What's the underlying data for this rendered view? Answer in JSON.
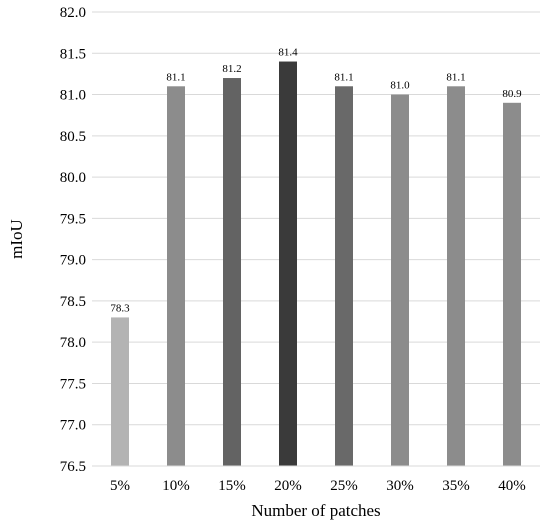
{
  "chart_data": {
    "type": "bar",
    "categories": [
      "5%",
      "10%",
      "15%",
      "20%",
      "25%",
      "30%",
      "35%",
      "40%"
    ],
    "values": [
      78.3,
      81.1,
      81.2,
      81.4,
      81.1,
      81.0,
      81.1,
      80.9
    ],
    "data_labels": [
      "78.3",
      "81.1",
      "81.2",
      "81.4",
      "81.1",
      "81.0",
      "81.1",
      "80.9"
    ],
    "bar_colors": [
      "#b3b3b3",
      "#8c8c8c",
      "#636363",
      "#3a3a3a",
      "#696969",
      "#8c8c8c",
      "#8c8c8c",
      "#8c8c8c"
    ],
    "xlabel": "Number of patches",
    "ylabel": "mIoU",
    "ylim": [
      76.5,
      82.0
    ],
    "yticks": [
      "76.5",
      "77.0",
      "77.5",
      "78.0",
      "78.5",
      "79.0",
      "79.5",
      "80.0",
      "80.5",
      "81.0",
      "81.5",
      "82.0"
    ],
    "grid": true,
    "legend": "none"
  }
}
